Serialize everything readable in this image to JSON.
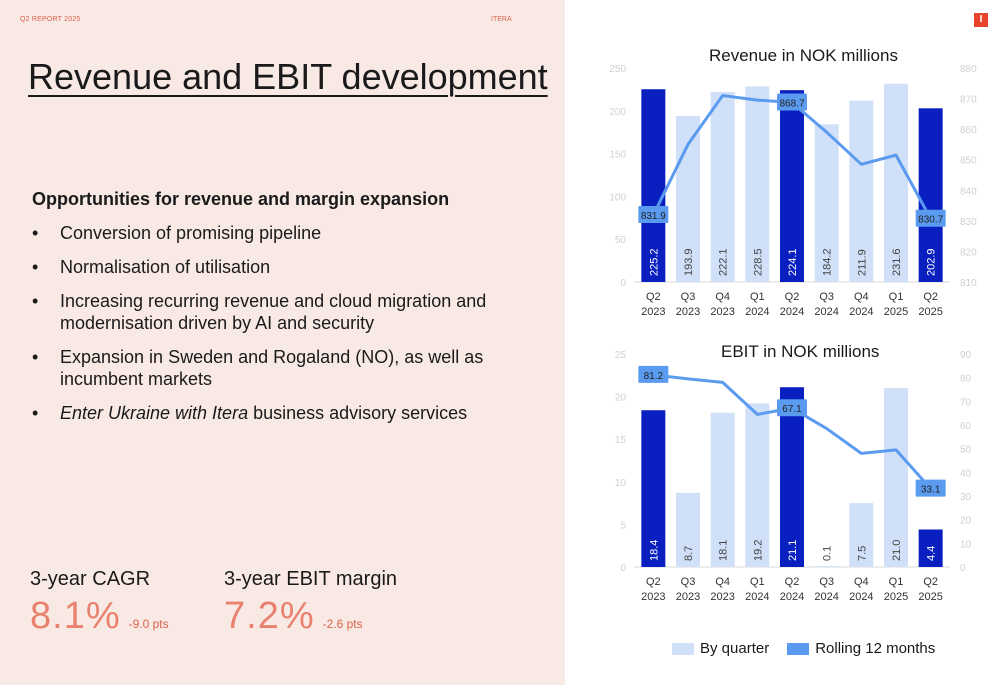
{
  "header": {
    "report": "Q2 REPORT 2025",
    "brand": "ITERA",
    "logo": "I"
  },
  "title": "Revenue and EBIT development",
  "subtitle": "Opportunities for revenue and margin expansion",
  "bullets": [
    {
      "text": "Conversion of promising pipeline"
    },
    {
      "text": "Normalisation of utilisation"
    },
    {
      "text": "Increasing recurring revenue and cloud migration and modernisation driven by AI and security"
    },
    {
      "text": "Expansion in Sweden and Rogaland (NO), as well as incumbent markets"
    },
    {
      "italic": "Enter Ukraine with Itera",
      "text": " business advisory services"
    }
  ],
  "kpis": [
    {
      "label": "3-year CAGR",
      "value": "8.1%",
      "delta": "-9.0 pts"
    },
    {
      "label": "3-year EBIT margin",
      "value": "7.2%",
      "delta": "-2.6 pts"
    }
  ],
  "legend": {
    "bar": "By quarter",
    "line": "Rolling 12 months"
  },
  "colors": {
    "bar_light": "#cfe0f8",
    "bar_dark": "#0a1fc0",
    "line": "#5b9bef",
    "accent": "#e8432c",
    "left_bg": "#f9e9e5"
  },
  "chart_data": [
    {
      "type": "bar",
      "title": "Revenue in NOK millions",
      "categories": [
        "Q2 2023",
        "Q3 2023",
        "Q4 2023",
        "Q1 2024",
        "Q2 2024",
        "Q3 2024",
        "Q4 2024",
        "Q1 2025",
        "Q2 2025"
      ],
      "values": [
        225.2,
        193.9,
        222.1,
        228.5,
        224.1,
        184.2,
        211.9,
        231.6,
        202.9
      ],
      "highlight": [
        0,
        4,
        8
      ],
      "ylim": [
        0,
        250
      ],
      "yticks": [
        0,
        50,
        100,
        150,
        200,
        250
      ],
      "line": {
        "values": [
          831.9,
          855,
          871,
          869.5,
          868.7,
          859,
          848.5,
          851.5,
          830.7
        ],
        "labels": {
          "0": "831.9",
          "4": "868.7",
          "8": "830.7"
        }
      },
      "y2lim": [
        810,
        880
      ],
      "y2ticks": [
        810,
        820,
        830,
        840,
        850,
        860,
        870,
        880
      ]
    },
    {
      "type": "bar",
      "title": "EBIT in NOK millions",
      "categories": [
        "Q2 2023",
        "Q3 2023",
        "Q4 2023",
        "Q1 2024",
        "Q2 2024",
        "Q3 2024",
        "Q4 2024",
        "Q1 2025",
        "Q2 2025"
      ],
      "values": [
        18.4,
        8.7,
        18.1,
        19.2,
        21.1,
        0.1,
        7.5,
        21.0,
        4.4
      ],
      "highlight": [
        0,
        4,
        8
      ],
      "ylim": [
        0,
        25
      ],
      "yticks": [
        0,
        5,
        10,
        15,
        20,
        25
      ],
      "line": {
        "values": [
          81.2,
          79.5,
          78,
          64.5,
          67.1,
          58.5,
          48,
          49.5,
          33.1
        ],
        "labels": {
          "0": "81.2",
          "4": "67.1",
          "8": "33.1"
        }
      },
      "y2lim": [
        0,
        90
      ],
      "y2ticks": [
        0,
        10,
        20,
        30,
        40,
        50,
        60,
        70,
        80,
        90
      ]
    }
  ]
}
